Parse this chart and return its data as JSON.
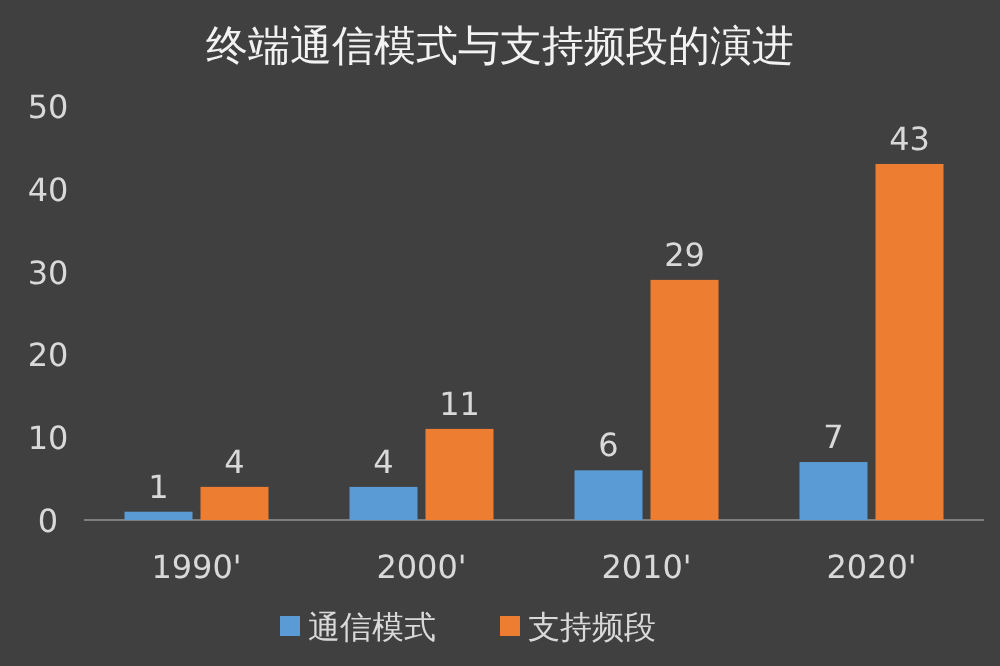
{
  "chart_data": {
    "type": "bar",
    "title": "终端通信模式与支持频段的演进",
    "categories": [
      "1990'",
      "2000'",
      "2010'",
      "2020'"
    ],
    "series": [
      {
        "name": "通信模式",
        "color": "#5b9bd5",
        "values": [
          1,
          4,
          6,
          7
        ]
      },
      {
        "name": "支持频段",
        "color": "#ed7d31",
        "values": [
          4,
          11,
          29,
          43
        ]
      }
    ],
    "ylim": [
      0,
      50
    ],
    "yticks": [
      0,
      10,
      20,
      30,
      40,
      50
    ],
    "data_labels": true,
    "legend": "bottom"
  }
}
